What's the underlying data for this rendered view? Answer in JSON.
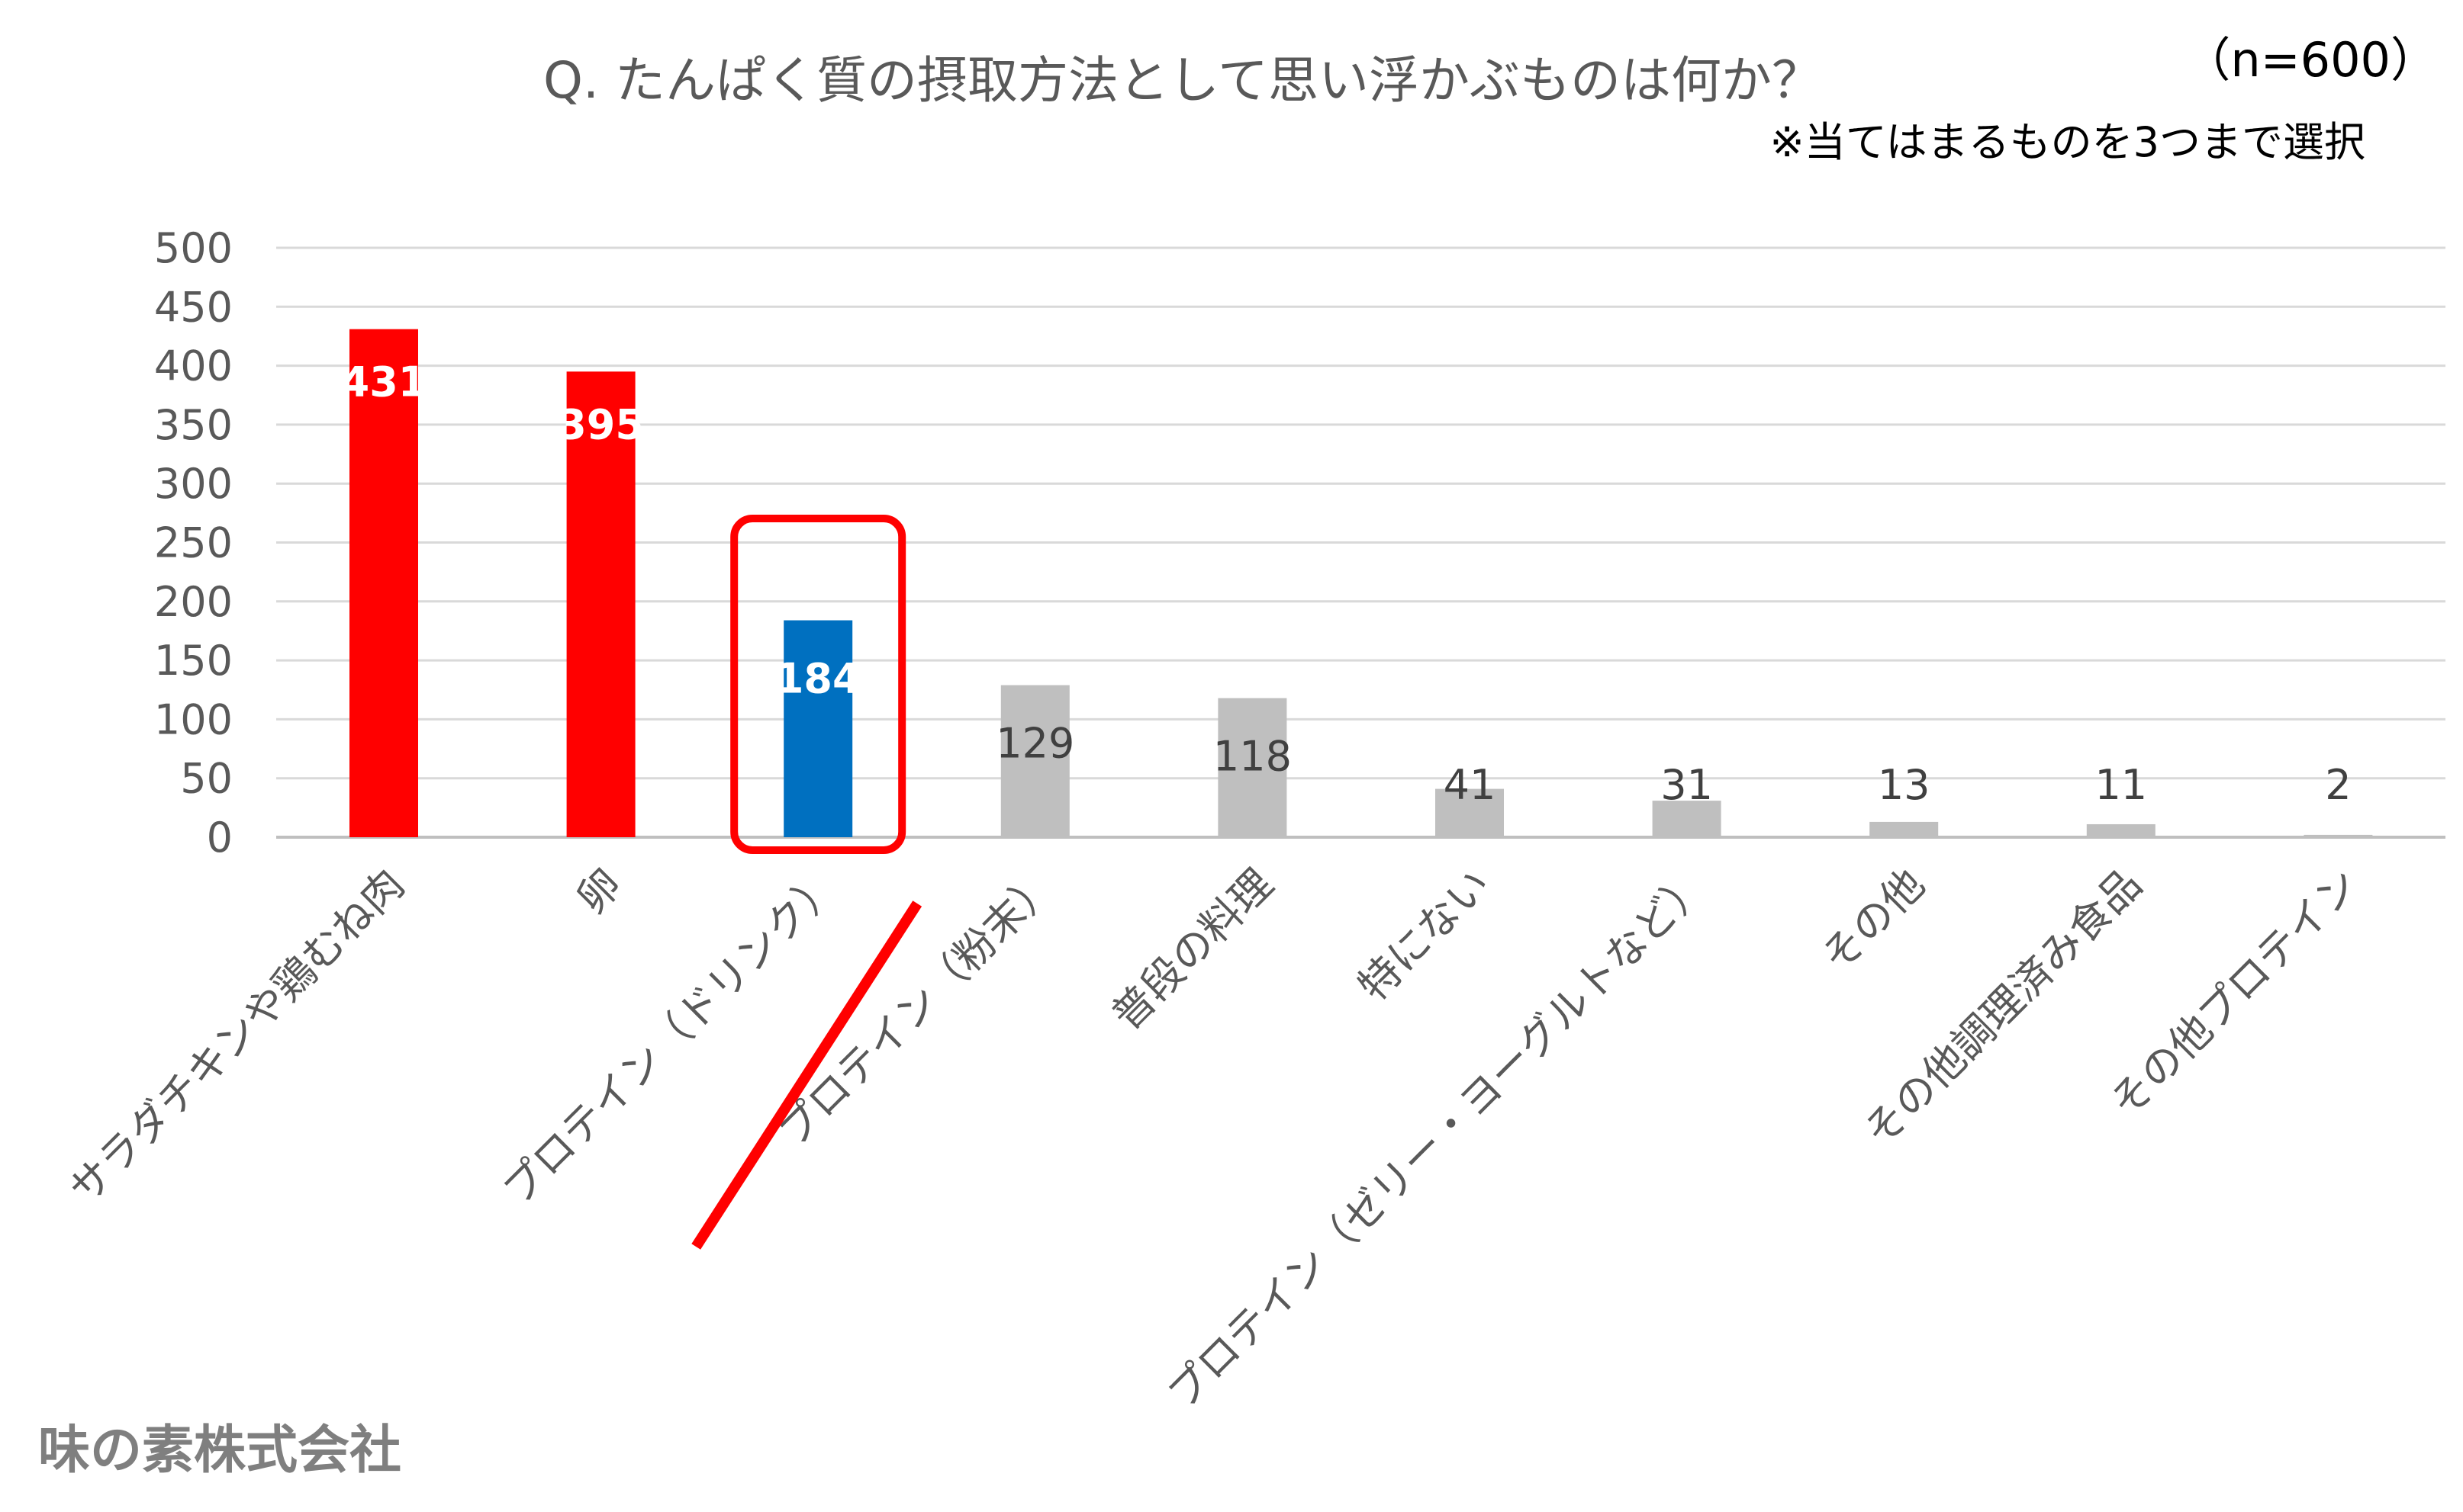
{
  "chart_data": {
    "type": "bar",
    "title": "Q. たんぱく質の摂取方法として思い浮かぶものは何か？",
    "sample_size": "（n=600）",
    "note": "※当てはまるものを3つまで選択",
    "categories": [
      "サラダチキンや鶏むね肉",
      "卵",
      "プロテイン（ドリンク）",
      "プロテイン（粉末）",
      "普段の料理",
      "特にない",
      "プロテイン（ゼリー・ヨーグルトなど）",
      "その他",
      "その他調理済み食品",
      "その他プロテイン"
    ],
    "values": [
      431,
      395,
      184,
      129,
      118,
      41,
      31,
      13,
      11,
      2
    ],
    "ylim": [
      0,
      500
    ],
    "yticks": [
      0,
      50,
      100,
      150,
      200,
      250,
      300,
      350,
      400,
      450,
      500
    ],
    "grid": true,
    "colors": {
      "top": "#ff0000",
      "highlight": "#0070c0",
      "other": "#bfbfbf",
      "label_on_dark": "#ffffff",
      "label_default": "#404040",
      "annotation": "#ff0000"
    },
    "highlighted_category": "プロテイン（ドリンク）",
    "xlabel": "",
    "ylabel": ""
  },
  "footer": {
    "company": "味の素株式会社"
  }
}
